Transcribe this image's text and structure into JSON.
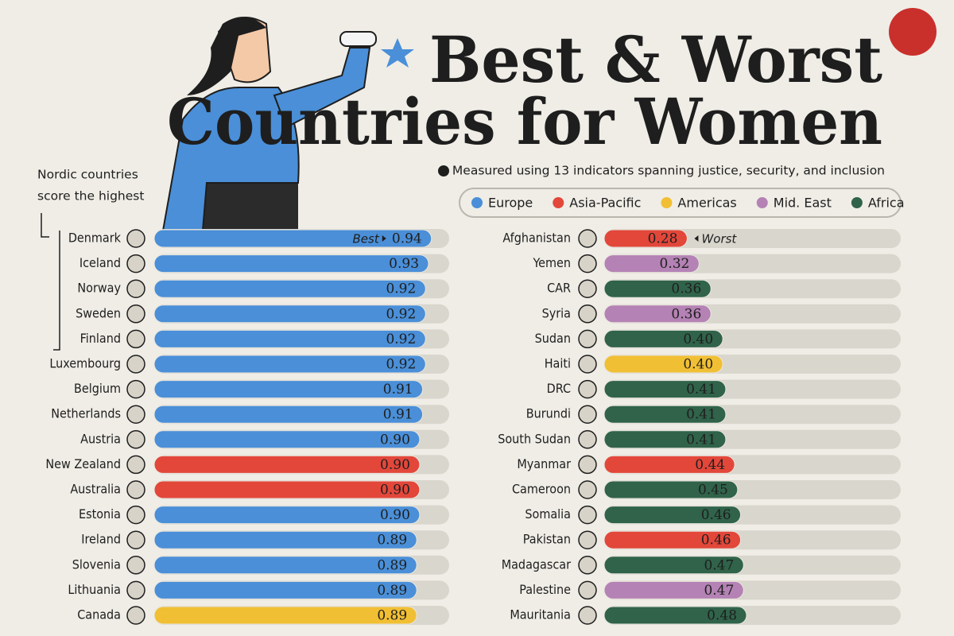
{
  "header": {
    "title_line1": "Best & Worst",
    "title_line2": "Countries for Women",
    "subtitle": "Measured using 13 indicators spanning justice, security, and inclusion",
    "note": [
      "Nordic countries",
      "score the highest"
    ]
  },
  "legend": [
    {
      "name": "Europe",
      "color": "#4a8fd8"
    },
    {
      "name": "Asia-Pacific",
      "color": "#e2473a"
    },
    {
      "name": "Americas",
      "color": "#f1bf33"
    },
    {
      "name": "Mid. East",
      "color": "#b482b4"
    },
    {
      "name": "Africa",
      "color": "#30634a"
    }
  ],
  "chart_data": [
    {
      "type": "bar",
      "orientation": "horizontal",
      "annotation": "Best",
      "categories": [
        "Denmark",
        "Iceland",
        "Norway",
        "Sweden",
        "Finland",
        "Luxembourg",
        "Belgium",
        "Netherlands",
        "Austria",
        "New Zealand",
        "Australia",
        "Estonia",
        "Ireland",
        "Slovenia",
        "Lithuania",
        "Canada"
      ],
      "values": [
        0.94,
        0.93,
        0.92,
        0.92,
        0.92,
        0.92,
        0.91,
        0.91,
        0.9,
        0.9,
        0.9,
        0.9,
        0.89,
        0.89,
        0.89,
        0.89
      ],
      "value_labels": [
        "0.94",
        "0.93",
        "0.92",
        "0.92",
        "0.92",
        "0.92",
        "0.91",
        "0.91",
        "0.90",
        "0.90",
        "0.90",
        "0.90",
        "0.89",
        "0.89",
        "0.89",
        "0.89"
      ],
      "colors": [
        "#4a8fd8",
        "#4a8fd8",
        "#4a8fd8",
        "#4a8fd8",
        "#4a8fd8",
        "#4a8fd8",
        "#4a8fd8",
        "#4a8fd8",
        "#4a8fd8",
        "#e2473a",
        "#e2473a",
        "#4a8fd8",
        "#4a8fd8",
        "#4a8fd8",
        "#4a8fd8",
        "#f1bf33"
      ],
      "xlim": [
        0,
        1
      ]
    },
    {
      "type": "bar",
      "orientation": "horizontal",
      "annotation": "Worst",
      "categories": [
        "Afghanistan",
        "Yemen",
        "CAR",
        "Syria",
        "Sudan",
        "Haiti",
        "DRC",
        "Burundi",
        "South Sudan",
        "Myanmar",
        "Cameroon",
        "Somalia",
        "Pakistan",
        "Madagascar",
        "Palestine",
        "Mauritania"
      ],
      "values": [
        0.28,
        0.32,
        0.36,
        0.36,
        0.4,
        0.4,
        0.41,
        0.41,
        0.41,
        0.44,
        0.45,
        0.46,
        0.46,
        0.47,
        0.47,
        0.48
      ],
      "value_labels": [
        "0.28",
        "0.32",
        "0.36",
        "0.36",
        "0.40",
        "0.40",
        "0.41",
        "0.41",
        "0.41",
        "0.44",
        "0.45",
        "0.46",
        "0.46",
        "0.47",
        "0.47",
        "0.48"
      ],
      "colors": [
        "#e2473a",
        "#b482b4",
        "#30634a",
        "#b482b4",
        "#30634a",
        "#f1bf33",
        "#30634a",
        "#30634a",
        "#30634a",
        "#e2473a",
        "#30634a",
        "#30634a",
        "#e2473a",
        "#30634a",
        "#b482b4",
        "#30634a"
      ],
      "xlim": [
        0,
        1
      ]
    }
  ]
}
